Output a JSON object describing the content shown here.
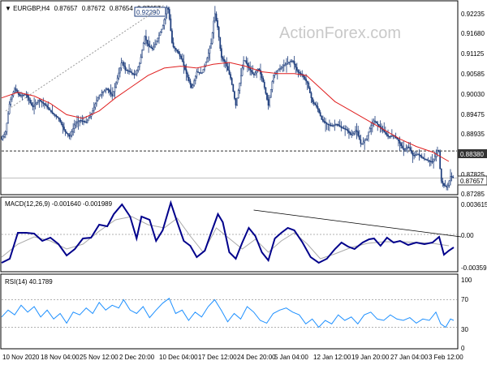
{
  "chart_data": [
    {
      "type": "candlestick",
      "panel": "price",
      "title": "EURGBP,H4",
      "ohlc_text": [
        "0.87657",
        "0.87672",
        "0.87654",
        "0.87657"
      ],
      "watermark": "ActionForex.com",
      "y_ticks": [
        "0.92235",
        "0.91680",
        "0.91125",
        "0.90585",
        "0.90030",
        "0.89475",
        "0.88935",
        "0.88380",
        "0.87825",
        "0.87285"
      ],
      "ylim": [
        0.8723,
        0.9238
      ],
      "price_path": [
        [
          0,
          0.887
        ],
        [
          5,
          0.889
        ],
        [
          10,
          0.897
        ],
        [
          16,
          0.9005
        ],
        [
          22,
          0.8985
        ],
        [
          30,
          0.899
        ],
        [
          38,
          0.8955
        ],
        [
          46,
          0.8975
        ],
        [
          54,
          0.896
        ],
        [
          62,
          0.894
        ],
        [
          70,
          0.8925
        ],
        [
          78,
          0.889
        ],
        [
          84,
          0.8875
        ],
        [
          90,
          0.891
        ],
        [
          96,
          0.892
        ],
        [
          104,
          0.8915
        ],
        [
          110,
          0.8935
        ],
        [
          118,
          0.898
        ],
        [
          124,
          0.8995
        ],
        [
          130,
          0.9005
        ],
        [
          136,
          0.8985
        ],
        [
          142,
          0.903
        ],
        [
          148,
          0.908
        ],
        [
          152,
          0.9055
        ],
        [
          158,
          0.905
        ],
        [
          164,
          0.904
        ],
        [
          170,
          0.9075
        ],
        [
          176,
          0.9145
        ],
        [
          180,
          0.912
        ],
        [
          186,
          0.911
        ],
        [
          192,
          0.914
        ],
        [
          198,
          0.917
        ],
        [
          204,
          0.9229
        ],
        [
          206,
          0.92
        ],
        [
          210,
          0.912
        ],
        [
          216,
          0.9105
        ],
        [
          222,
          0.908
        ],
        [
          228,
          0.904
        ],
        [
          234,
          0.9005
        ],
        [
          240,
          0.905
        ],
        [
          246,
          0.9045
        ],
        [
          252,
          0.908
        ],
        [
          258,
          0.913
        ],
        [
          262,
          0.921
        ],
        [
          266,
          0.9165
        ],
        [
          270,
          0.909
        ],
        [
          276,
          0.907
        ],
        [
          282,
          0.903
        ],
        [
          288,
          0.896
        ],
        [
          292,
          0.901
        ],
        [
          298,
          0.9085
        ],
        [
          304,
          0.906
        ],
        [
          310,
          0.904
        ],
        [
          316,
          0.906
        ],
        [
          322,
          0.902
        ],
        [
          328,
          0.896
        ],
        [
          334,
          0.904
        ],
        [
          340,
          0.9055
        ],
        [
          346,
          0.9065
        ],
        [
          352,
          0.9075
        ],
        [
          358,
          0.908
        ],
        [
          364,
          0.905
        ],
        [
          370,
          0.904
        ],
        [
          376,
          0.902
        ],
        [
          382,
          0.897
        ],
        [
          388,
          0.8955
        ],
        [
          394,
          0.892
        ],
        [
          400,
          0.891
        ],
        [
          406,
          0.8905
        ],
        [
          412,
          0.891
        ],
        [
          418,
          0.89
        ],
        [
          424,
          0.8895
        ],
        [
          430,
          0.888
        ],
        [
          436,
          0.8895
        ],
        [
          442,
          0.8855
        ],
        [
          448,
          0.887
        ],
        [
          454,
          0.8905
        ],
        [
          458,
          0.892
        ],
        [
          464,
          0.8905
        ],
        [
          470,
          0.889
        ],
        [
          476,
          0.8875
        ],
        [
          482,
          0.888
        ],
        [
          488,
          0.8865
        ],
        [
          494,
          0.884
        ],
        [
          500,
          0.885
        ],
        [
          506,
          0.8825
        ],
        [
          512,
          0.883
        ],
        [
          518,
          0.8818
        ],
        [
          524,
          0.8812
        ],
        [
          530,
          0.8808
        ],
        [
          536,
          0.884
        ],
        [
          538,
          0.8835
        ],
        [
          540,
          0.876
        ],
        [
          544,
          0.8745
        ],
        [
          548,
          0.874
        ],
        [
          552,
          0.877
        ],
        [
          556,
          0.8766
        ]
      ],
      "ma_path": [
        [
          0,
          0.898
        ],
        [
          20,
          0.8995
        ],
        [
          40,
          0.8985
        ],
        [
          60,
          0.8965
        ],
        [
          80,
          0.8935
        ],
        [
          100,
          0.8925
        ],
        [
          120,
          0.8945
        ],
        [
          140,
          0.898
        ],
        [
          160,
          0.901
        ],
        [
          180,
          0.904
        ],
        [
          200,
          0.906
        ],
        [
          220,
          0.9065
        ],
        [
          240,
          0.906
        ],
        [
          260,
          0.907
        ],
        [
          280,
          0.9075
        ],
        [
          300,
          0.9065
        ],
        [
          320,
          0.905
        ],
        [
          340,
          0.9045
        ],
        [
          360,
          0.9045
        ],
        [
          375,
          0.904
        ],
        [
          390,
          0.901
        ],
        [
          410,
          0.897
        ],
        [
          430,
          0.8945
        ],
        [
          450,
          0.892
        ],
        [
          470,
          0.8895
        ],
        [
          490,
          0.887
        ],
        [
          510,
          0.885
        ],
        [
          530,
          0.8835
        ],
        [
          550,
          0.881
        ]
      ],
      "ma_color": "#e01f1f",
      "price_color": "#1a3a7a",
      "trendline": [
        [
          5,
          0.8945
        ],
        [
          200,
          0.9229
        ]
      ],
      "annotation_high": "0.92290",
      "hline_value": 0.8838,
      "hline_label": "0.88380",
      "last_price_label": "0.87657"
    },
    {
      "type": "line",
      "panel": "macd",
      "title": "MACD(12,26,9) -0.001640 -0.001989",
      "y_ticks": [
        "0.003615",
        "0.00",
        "-0.003592"
      ],
      "ylim": [
        -0.0045,
        0.0045
      ],
      "macd_color": "#00008b",
      "signal_color": "#a9a9a9",
      "macd_path": [
        [
          0,
          -0.0035
        ],
        [
          10,
          -0.003
        ],
        [
          20,
          0.0002
        ],
        [
          30,
          0.0002
        ],
        [
          40,
          0.0001
        ],
        [
          50,
          -0.0008
        ],
        [
          60,
          -0.0004
        ],
        [
          70,
          -0.0012
        ],
        [
          80,
          -0.0026
        ],
        [
          90,
          -0.0018
        ],
        [
          100,
          -0.0005
        ],
        [
          110,
          -0.0004
        ],
        [
          120,
          0.0012
        ],
        [
          130,
          0.001
        ],
        [
          138,
          0.0025
        ],
        [
          148,
          0.0037
        ],
        [
          158,
          0.0022
        ],
        [
          166,
          -0.0005
        ],
        [
          172,
          0.0022
        ],
        [
          182,
          0.0018
        ],
        [
          190,
          -0.0008
        ],
        [
          198,
          0.0005
        ],
        [
          208,
          0.0039
        ],
        [
          216,
          0.0015
        ],
        [
          224,
          -0.0008
        ],
        [
          232,
          -0.0014
        ],
        [
          240,
          -0.0028
        ],
        [
          250,
          -0.002
        ],
        [
          258,
          0.0003
        ],
        [
          266,
          0.0025
        ],
        [
          272,
          0.0015
        ],
        [
          280,
          -0.0022
        ],
        [
          288,
          -0.003
        ],
        [
          296,
          -0.001
        ],
        [
          304,
          0.0008
        ],
        [
          312,
          -0.0002
        ],
        [
          320,
          -0.0022
        ],
        [
          328,
          -0.0032
        ],
        [
          336,
          -0.0005
        ],
        [
          344,
          0.0002
        ],
        [
          352,
          0.0008
        ],
        [
          360,
          0.0005
        ],
        [
          370,
          -0.001
        ],
        [
          380,
          -0.0028
        ],
        [
          390,
          -0.0035
        ],
        [
          400,
          -0.003
        ],
        [
          410,
          -0.0018
        ],
        [
          418,
          -0.001
        ],
        [
          426,
          -0.0015
        ],
        [
          434,
          -0.0018
        ],
        [
          444,
          -0.001
        ],
        [
          452,
          -0.0006
        ],
        [
          458,
          -0.0005
        ],
        [
          466,
          -0.0014
        ],
        [
          474,
          -0.0004
        ],
        [
          482,
          -0.001
        ],
        [
          490,
          -0.0008
        ],
        [
          500,
          -0.0013
        ],
        [
          510,
          -0.001
        ],
        [
          520,
          -0.0012
        ],
        [
          530,
          -0.001
        ],
        [
          538,
          -0.0003
        ],
        [
          544,
          -0.0025
        ],
        [
          550,
          -0.002
        ],
        [
          556,
          -0.0016
        ]
      ],
      "signal_path": [
        [
          0,
          -0.0028
        ],
        [
          20,
          -0.0012
        ],
        [
          40,
          -0.0003
        ],
        [
          60,
          -0.0008
        ],
        [
          80,
          -0.0018
        ],
        [
          100,
          -0.0012
        ],
        [
          120,
          0.0004
        ],
        [
          140,
          0.0018
        ],
        [
          160,
          0.0022
        ],
        [
          180,
          0.0012
        ],
        [
          200,
          0.0008
        ],
        [
          216,
          0.002
        ],
        [
          232,
          -0.0002
        ],
        [
          248,
          -0.0022
        ],
        [
          264,
          0.0008
        ],
        [
          280,
          -0.0005
        ],
        [
          296,
          -0.0018
        ],
        [
          312,
          -0.0006
        ],
        [
          328,
          -0.0022
        ],
        [
          344,
          -0.0008
        ],
        [
          360,
          0.0002
        ],
        [
          376,
          -0.0012
        ],
        [
          392,
          -0.003
        ],
        [
          410,
          -0.0024
        ],
        [
          430,
          -0.0016
        ],
        [
          450,
          -0.0011
        ],
        [
          470,
          -0.0009
        ],
        [
          490,
          -0.0009
        ],
        [
          510,
          -0.001
        ],
        [
          530,
          -0.0011
        ],
        [
          550,
          -0.0014
        ]
      ],
      "trendline": [
        [
          310,
          0.003
        ],
        [
          565,
          -0.0003
        ]
      ]
    },
    {
      "type": "line",
      "panel": "rsi",
      "title": "RSI(14) 40.1789",
      "y_ticks": [
        "100",
        "70",
        "30",
        "0"
      ],
      "ylim": [
        0,
        100
      ],
      "rsi_color": "#1e90ff",
      "levels": [
        70,
        30
      ],
      "rsi_path": [
        [
          0,
          45
        ],
        [
          8,
          55
        ],
        [
          16,
          48
        ],
        [
          24,
          62
        ],
        [
          32,
          52
        ],
        [
          40,
          60
        ],
        [
          48,
          45
        ],
        [
          56,
          55
        ],
        [
          64,
          42
        ],
        [
          72,
          50
        ],
        [
          80,
          36
        ],
        [
          88,
          52
        ],
        [
          96,
          48
        ],
        [
          104,
          58
        ],
        [
          112,
          50
        ],
        [
          120,
          66
        ],
        [
          128,
          55
        ],
        [
          136,
          62
        ],
        [
          144,
          58
        ],
        [
          150,
          70
        ],
        [
          158,
          55
        ],
        [
          166,
          50
        ],
        [
          174,
          60
        ],
        [
          182,
          44
        ],
        [
          190,
          55
        ],
        [
          198,
          65
        ],
        [
          206,
          72
        ],
        [
          214,
          50
        ],
        [
          222,
          55
        ],
        [
          230,
          40
        ],
        [
          238,
          52
        ],
        [
          246,
          45
        ],
        [
          254,
          60
        ],
        [
          262,
          70
        ],
        [
          270,
          55
        ],
        [
          278,
          38
        ],
        [
          286,
          50
        ],
        [
          294,
          42
        ],
        [
          302,
          60
        ],
        [
          310,
          52
        ],
        [
          318,
          40
        ],
        [
          326,
          36
        ],
        [
          334,
          50
        ],
        [
          342,
          55
        ],
        [
          350,
          58
        ],
        [
          358,
          52
        ],
        [
          366,
          48
        ],
        [
          374,
          35
        ],
        [
          382,
          42
        ],
        [
          390,
          30
        ],
        [
          398,
          40
        ],
        [
          406,
          35
        ],
        [
          414,
          48
        ],
        [
          422,
          40
        ],
        [
          430,
          45
        ],
        [
          438,
          35
        ],
        [
          446,
          48
        ],
        [
          454,
          52
        ],
        [
          462,
          42
        ],
        [
          470,
          40
        ],
        [
          478,
          48
        ],
        [
          486,
          42
        ],
        [
          494,
          40
        ],
        [
          502,
          44
        ],
        [
          510,
          36
        ],
        [
          518,
          42
        ],
        [
          526,
          40
        ],
        [
          534,
          52
        ],
        [
          540,
          35
        ],
        [
          546,
          30
        ],
        [
          552,
          42
        ],
        [
          556,
          40
        ]
      ]
    }
  ],
  "x_ticks": [
    "10 Nov 2020",
    "18 Nov 04:00",
    "25 Nov 12:00",
    "2 Dec 20:00",
    "10 Dec 04:00",
    "17 Dec 12:00",
    "24 Dec 20:00",
    "5 Jan 04:00",
    "12 Jan 12:00",
    "19 Jan 20:00",
    "27 Jan 04:00",
    "3 Feb 12:00"
  ]
}
